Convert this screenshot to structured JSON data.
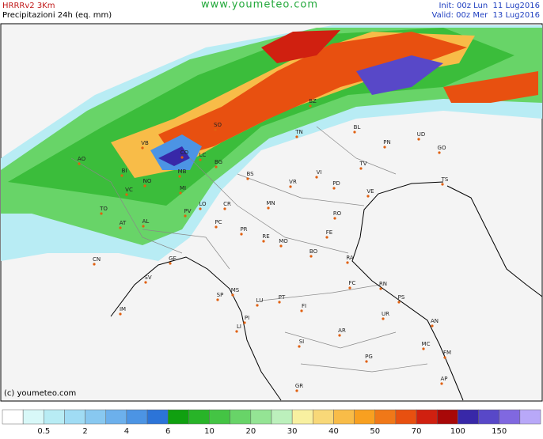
{
  "header": {
    "model": "HRRRv2 3Km",
    "product": "Precipitazioni 24h (eq. mm)",
    "site": "www.youmeteo.com",
    "init": "Init: 00z Lun  11 Lug2016",
    "valid": "Valid: 00z Mer  13 Lug2016"
  },
  "footer": {
    "copyright": "(c) youmeteo.com"
  },
  "map": {
    "labels": [
      "VB",
      "CO",
      "LC",
      "SO",
      "BZ",
      "TN",
      "BL",
      "PN",
      "UD",
      "GO",
      "TS",
      "TV",
      "VE",
      "PD",
      "VI",
      "VR",
      "BS",
      "BG",
      "MB",
      "MI",
      "NO",
      "VC",
      "BI",
      "AO",
      "TO",
      "AT",
      "AL",
      "PV",
      "LO",
      "CR",
      "PC",
      "MN",
      "RO",
      "FE",
      "PR",
      "RE",
      "MO",
      "BO",
      "RA",
      "FC",
      "RN",
      "PS",
      "CN",
      "GE",
      "SV",
      "IM",
      "SP",
      "MS",
      "LU",
      "PT",
      "FI",
      "PI",
      "LI",
      "AR",
      "UR",
      "AN",
      "SI",
      "PG",
      "MC",
      "FM",
      "GR",
      "AP"
    ]
  },
  "legend": {
    "colors": [
      "#ffffff",
      "#d8f8f8",
      "#b8ecf4",
      "#a0dcf4",
      "#88c8f0",
      "#6cb0ec",
      "#4c94e4",
      "#2c74d8",
      "#10a010",
      "#28b428",
      "#44c444",
      "#68d468",
      "#94e494",
      "#bcf0bc",
      "#f8f0a0",
      "#f8d878",
      "#f8bc48",
      "#f8a020",
      "#f07818",
      "#e85010",
      "#d02010",
      "#a80808",
      "#3828a8",
      "#5848c8",
      "#8068e0",
      "#b8a8f8"
    ],
    "labels": [
      "0.5",
      "2",
      "4",
      "6",
      "10",
      "20",
      "30",
      "40",
      "50",
      "70",
      "100",
      "150"
    ]
  }
}
